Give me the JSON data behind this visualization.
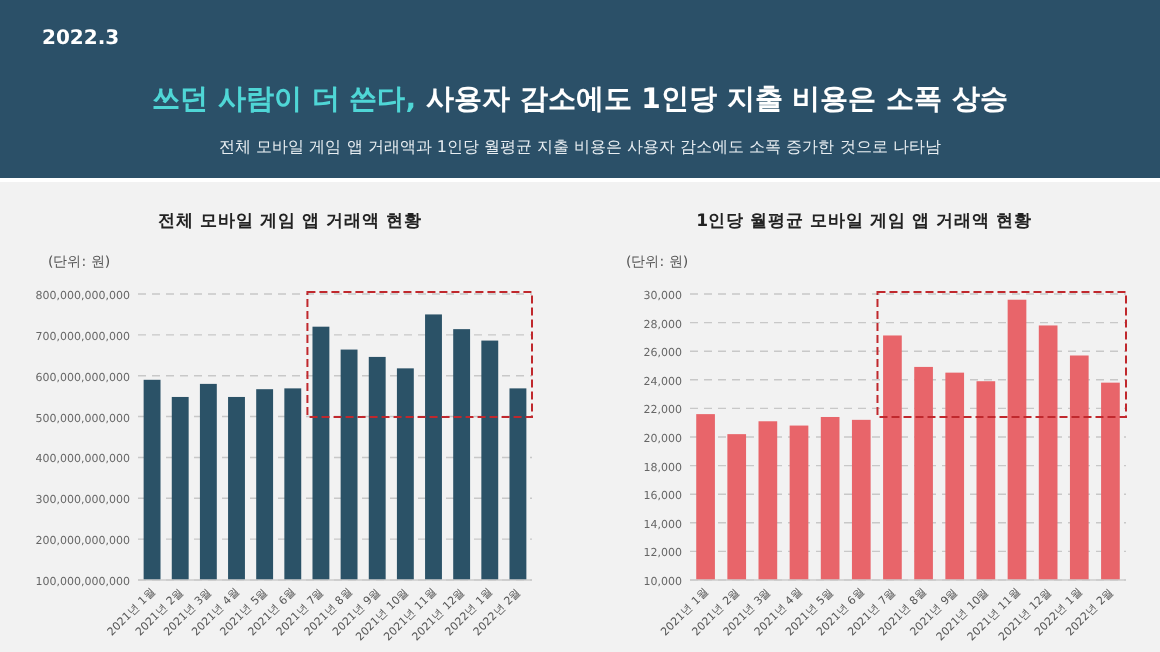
{
  "chart_data": [
    {
      "type": "other",
      "title": "쓰던 사람이 더 쓴다, 사용자 감소에도 1인당 지출 비용은 소폭 상승",
      "subtitle": "전체 모바일 게임 앱 거래액과 1인당 월평균 지출 비용은 사용자 감소에도 소폭 증가한 것으로 나타남",
      "annotations": [
        "2022.3"
      ]
    },
    {
      "type": "bar",
      "title": "전체 모바일 게임 앱 거래액 현황",
      "ylabel": "(단위: 원)",
      "categories": [
        "2021년 1월",
        "2021년 2월",
        "2021년 3월",
        "2021년 4월",
        "2021년 5월",
        "2021년 6월",
        "2021년 7월",
        "2021년 8월",
        "2021년 9월",
        "2021년 10월",
        "2021년 11월",
        "2021년 12월",
        "2022년 1월",
        "2022년 2월"
      ],
      "values": [
        590000000000,
        548000000000,
        580000000000,
        548000000000,
        567000000000,
        569000000000,
        720000000000,
        664000000000,
        646000000000,
        618000000000,
        750000000000,
        714000000000,
        686000000000,
        569000000000
      ],
      "color": "#2b5267",
      "ylim": [
        100000000000,
        800000000000
      ],
      "yticks": [
        {
          "value": 100000000000,
          "label": "100,000,000,000"
        },
        {
          "value": 200000000000,
          "label": "200,000,000,000"
        },
        {
          "value": 300000000000,
          "label": "300,000,000,000"
        },
        {
          "value": 400000000000,
          "label": "400,000,000,000"
        },
        {
          "value": 500000000000,
          "label": "500,000,000,000"
        },
        {
          "value": 600000000000,
          "label": "600,000,000,000"
        },
        {
          "value": 700000000000,
          "label": "700,000,000,000"
        },
        {
          "value": 800000000000,
          "label": "800,000,000,000"
        }
      ],
      "grid": "y"
    },
    {
      "type": "bar",
      "title": "1인당 월평균 모바일 게임 앱 거래액 현황",
      "ylabel": "(단위: 원)",
      "categories": [
        "2021년 1월",
        "2021년 2월",
        "2021년 3월",
        "2021년 4월",
        "2021년 5월",
        "2021년 6월",
        "2021년 7월",
        "2021년 8월",
        "2021년 9월",
        "2021년 10월",
        "2021년 11월",
        "2021년 12월",
        "2022년 1월",
        "2022년 2월"
      ],
      "values": [
        21600,
        20200,
        21100,
        20800,
        21400,
        21200,
        27100,
        24900,
        24500,
        23900,
        29600,
        27800,
        25700,
        23800
      ],
      "color": "#e8656a",
      "ylim": [
        10000,
        30000
      ],
      "yticks": [
        {
          "value": 10000,
          "label": "10,000"
        },
        {
          "value": 12000,
          "label": "12,000"
        },
        {
          "value": 14000,
          "label": "14,000"
        },
        {
          "value": 16000,
          "label": "16,000"
        },
        {
          "value": 18000,
          "label": "18,000"
        },
        {
          "value": 20000,
          "label": "20,000"
        },
        {
          "value": 22000,
          "label": "22,000"
        },
        {
          "value": 24000,
          "label": "24,000"
        },
        {
          "value": 26000,
          "label": "26,000"
        },
        {
          "value": 28000,
          "label": "28,000"
        },
        {
          "value": 30000,
          "label": "30,000"
        }
      ],
      "grid": "y"
    }
  ]
}
